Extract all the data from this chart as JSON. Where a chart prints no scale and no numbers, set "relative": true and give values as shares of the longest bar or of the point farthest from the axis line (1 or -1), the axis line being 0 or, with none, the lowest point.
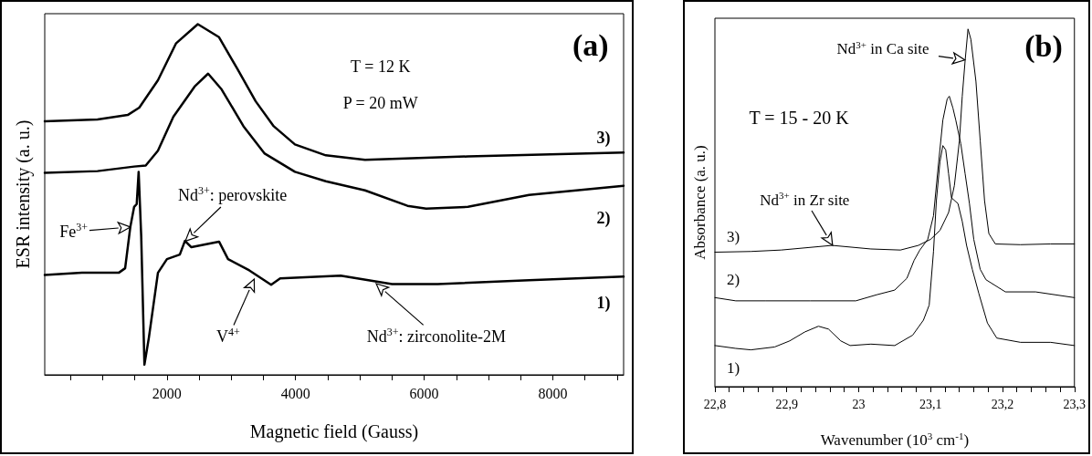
{
  "chart_data": [
    {
      "type": "line",
      "xlabel": "Magnetic field (Gauss)",
      "ylabel": "ESR intensity (a. u.)",
      "relative": true,
      "xlim": [
        100,
        9100
      ],
      "xticks": [
        {
          "value": 500,
          "label": null
        },
        {
          "value": 1000,
          "label": null
        },
        {
          "value": 1500,
          "label": null
        },
        2000,
        {
          "value": 2500,
          "label": null
        },
        {
          "value": 3000,
          "label": null
        },
        {
          "value": 3500,
          "label": null
        },
        4000,
        {
          "value": 4500,
          "label": null
        },
        {
          "value": 5000,
          "label": null
        },
        {
          "value": 5500,
          "label": null
        },
        6000,
        {
          "value": 6500,
          "label": null
        },
        {
          "value": 7000,
          "label": null
        },
        {
          "value": 7500,
          "label": null
        },
        8000,
        {
          "value": 8500,
          "label": null
        },
        {
          "value": 9000,
          "label": null
        }
      ],
      "tick_labels": "x",
      "grid": false,
      "legend": false,
      "marker": "none",
      "line_style": "solid",
      "series": [
        {
          "name": "1)",
          "color": "#000000",
          "x": [
            100,
            680,
            1250,
            1350,
            1430,
            1490,
            1530,
            1560,
            1600,
            1650,
            1720,
            1860,
            2000,
            2200,
            2280,
            2380,
            2810,
            2950,
            3280,
            3620,
            3760,
            4700,
            5500,
            6210,
            7630,
            9100
          ],
          "values": [
            0.285,
            0.291,
            0.291,
            0.304,
            0.421,
            0.479,
            0.487,
            0.579,
            0.395,
            0.029,
            0.107,
            0.291,
            0.33,
            0.343,
            0.382,
            0.364,
            0.38,
            0.33,
            0.298,
            0.257,
            0.275,
            0.283,
            0.259,
            0.259,
            0.27,
            0.28
          ]
        },
        {
          "name": "2)",
          "color": "#000000",
          "x": [
            100,
            920,
            1490,
            1670,
            1860,
            2100,
            2430,
            2640,
            2850,
            3190,
            3520,
            3990,
            4470,
            5080,
            5740,
            6030,
            6680,
            7630,
            9100
          ],
          "values": [
            0.576,
            0.581,
            0.594,
            0.597,
            0.639,
            0.736,
            0.822,
            0.859,
            0.814,
            0.709,
            0.631,
            0.579,
            0.552,
            0.526,
            0.482,
            0.474,
            0.479,
            0.513,
            0.539
          ]
        },
        {
          "name": "3)",
          "color": "#000000",
          "x": [
            100,
            920,
            1390,
            1570,
            1860,
            2140,
            2480,
            2810,
            3090,
            3380,
            3660,
            3990,
            4470,
            5080,
            6680,
            9100
          ],
          "values": [
            0.723,
            0.728,
            0.741,
            0.762,
            0.84,
            0.945,
            1.0,
            0.963,
            0.874,
            0.78,
            0.709,
            0.657,
            0.626,
            0.613,
            0.623,
            0.634
          ]
        }
      ],
      "annotations": [
        "(a)",
        "T = 12 K",
        "P = 20 mW",
        {
          "text": "Fe$^{3+}$",
          "x": 1430,
          "y": 0.421
        },
        {
          "text": "Nd$^{3+}$: perovskite",
          "x": 2280,
          "y": 0.382
        },
        {
          "text": "V$^{4+}$",
          "x": 3350,
          "y": 0.272
        },
        {
          "text": "Nd$^{3+}$: zirconolite-2M",
          "x": 5250,
          "y": 0.259
        }
      ]
    },
    {
      "type": "line",
      "xlabel": "Wavenumber (10$^{3}$ cm$^{-1}$)",
      "ylabel": "Absorbance (a. u.)",
      "relative": true,
      "xlim": [
        22.8,
        23.3
      ],
      "xticks": [
        {
          "value": 22.8,
          "label": "22,8"
        },
        {
          "value": 22.82,
          "label": null
        },
        {
          "value": 22.84,
          "label": null
        },
        {
          "value": 22.86,
          "label": null
        },
        {
          "value": 22.88,
          "label": null
        },
        {
          "value": 22.9,
          "label": "22,9"
        },
        {
          "value": 22.92,
          "label": null
        },
        {
          "value": 22.94,
          "label": null
        },
        {
          "value": 22.96,
          "label": null
        },
        {
          "value": 22.98,
          "label": null
        },
        23,
        {
          "value": 23.02,
          "label": null
        },
        {
          "value": 23.04,
          "label": null
        },
        {
          "value": 23.06,
          "label": null
        },
        {
          "value": 23.08,
          "label": null
        },
        {
          "value": 23.1,
          "label": "23,1"
        },
        {
          "value": 23.12,
          "label": null
        },
        {
          "value": 23.14,
          "label": null
        },
        {
          "value": 23.16,
          "label": null
        },
        {
          "value": 23.18,
          "label": null
        },
        {
          "value": 23.2,
          "label": "23,2"
        },
        {
          "value": 23.22,
          "label": null
        },
        {
          "value": 23.24,
          "label": null
        },
        {
          "value": 23.26,
          "label": null
        },
        {
          "value": 23.28,
          "label": null
        },
        {
          "value": 23.3,
          "label": "23,3"
        }
      ],
      "tick_labels": "x",
      "grid": false,
      "legend": false,
      "marker": "none",
      "line_style": "solid",
      "series": [
        {
          "name": "1)",
          "color": "#000000",
          "x": [
            22.8,
            22.829,
            22.85,
            22.883,
            22.904,
            22.925,
            22.944,
            22.958,
            22.975,
            22.988,
            23.017,
            23.05,
            23.075,
            23.09,
            23.098,
            23.104,
            23.108,
            23.113,
            23.117,
            23.121,
            23.125,
            23.129,
            23.138,
            23.144,
            23.15,
            23.158,
            23.167,
            23.179,
            23.192,
            23.225,
            23.267,
            23.3
          ],
          "values": [
            0.115,
            0.107,
            0.103,
            0.111,
            0.128,
            0.153,
            0.169,
            0.161,
            0.128,
            0.115,
            0.119,
            0.115,
            0.144,
            0.186,
            0.228,
            0.378,
            0.52,
            0.629,
            0.674,
            0.662,
            0.595,
            0.528,
            0.512,
            0.462,
            0.395,
            0.328,
            0.261,
            0.178,
            0.136,
            0.124,
            0.124,
            0.115
          ]
        },
        {
          "name": "2)",
          "color": "#000000",
          "x": [
            22.8,
            22.829,
            22.871,
            22.933,
            22.996,
            23.025,
            23.05,
            23.067,
            23.077,
            23.085,
            23.096,
            23.104,
            23.11,
            23.117,
            23.123,
            23.126,
            23.131,
            23.135,
            23.142,
            23.148,
            23.154,
            23.16,
            23.169,
            23.177,
            23.204,
            23.246,
            23.3
          ],
          "values": [
            0.249,
            0.24,
            0.24,
            0.24,
            0.24,
            0.257,
            0.27,
            0.303,
            0.353,
            0.382,
            0.412,
            0.478,
            0.604,
            0.745,
            0.804,
            0.812,
            0.779,
            0.745,
            0.679,
            0.595,
            0.512,
            0.412,
            0.328,
            0.299,
            0.265,
            0.265,
            0.249
          ]
        },
        {
          "name": "3)",
          "color": "#000000",
          "x": [
            22.8,
            22.85,
            22.892,
            22.963,
            23.017,
            23.058,
            23.083,
            23.1,
            23.113,
            23.125,
            23.133,
            23.14,
            23.144,
            23.148,
            23.152,
            23.156,
            23.163,
            23.169,
            23.175,
            23.181,
            23.19,
            23.225,
            23.267,
            23.3
          ],
          "values": [
            0.376,
            0.378,
            0.382,
            0.395,
            0.385,
            0.382,
            0.395,
            0.412,
            0.437,
            0.487,
            0.562,
            0.687,
            0.812,
            0.912,
            1.0,
            0.971,
            0.854,
            0.687,
            0.52,
            0.428,
            0.399,
            0.397,
            0.399,
            0.399
          ]
        }
      ],
      "annotations": [
        "(b)",
        "T = 15 - 20 K",
        {
          "text": "Nd$^{3+}$ in Ca site",
          "x": 23.148,
          "y": 0.912
        },
        {
          "text": "Nd$^{3+}$ in Zr site",
          "x": 22.963,
          "y": 0.395
        }
      ]
    }
  ]
}
